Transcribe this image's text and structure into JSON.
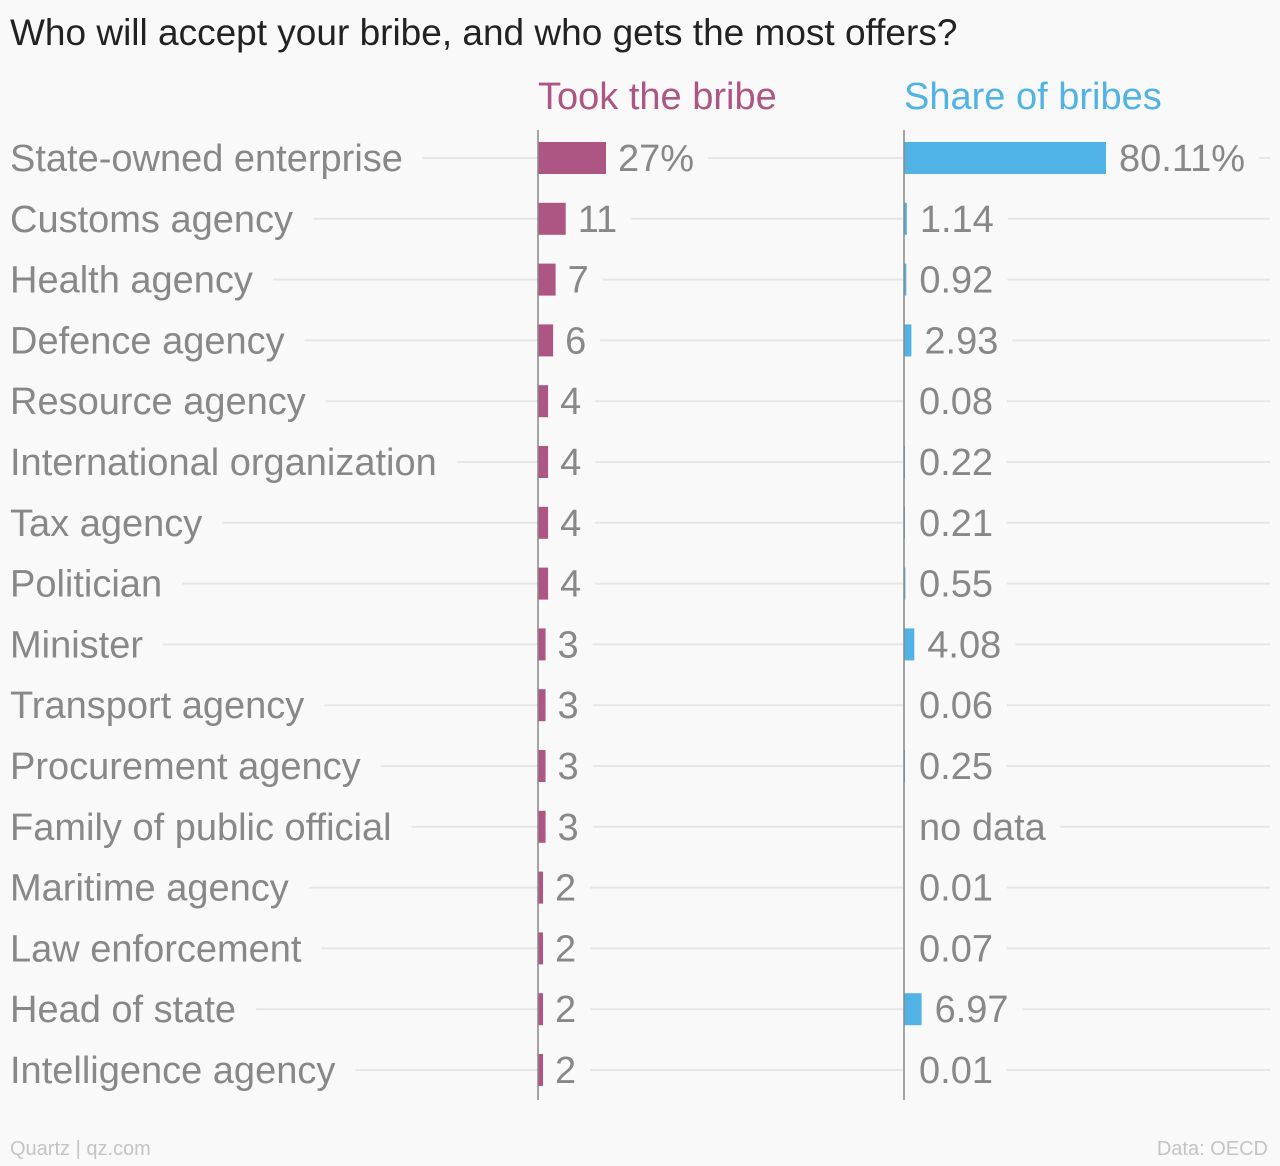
{
  "title": "Who will accept your bribe, and who gets the most offers?",
  "colors": {
    "took": "#ad5683",
    "share": "#51b2e5",
    "label": "#888888",
    "grid": "#e6e6e6",
    "axis": "#888888"
  },
  "chart_data": {
    "type": "bar",
    "categories": [
      "State-owned enterprise",
      "Customs agency",
      "Health agency",
      "Defence agency",
      "Resource agency",
      "International organization",
      "Tax agency",
      "Politician",
      "Minister",
      "Transport agency",
      "Procurement agency",
      "Family of public official",
      "Maritime agency",
      "Law enforcement",
      "Head of state",
      "Intelligence agency"
    ],
    "series": [
      {
        "name": "Took the bribe",
        "values": [
          27,
          11,
          7,
          6,
          4,
          4,
          4,
          4,
          3,
          3,
          3,
          3,
          2,
          2,
          2,
          2
        ],
        "labels": [
          "27%",
          "11",
          "7",
          "6",
          "4",
          "4",
          "4",
          "4",
          "3",
          "3",
          "3",
          "3",
          "2",
          "2",
          "2",
          "2"
        ]
      },
      {
        "name": "Share of bribes",
        "values": [
          80.11,
          1.14,
          0.92,
          2.93,
          0.08,
          0.22,
          0.21,
          0.55,
          4.08,
          0.06,
          0.25,
          null,
          0.01,
          0.07,
          6.97,
          0.01
        ],
        "labels": [
          "80.11%",
          "1.14",
          "0.92",
          "2.93",
          "0.08",
          "0.22",
          "0.21",
          "0.55",
          "4.08",
          "0.06",
          "0.25",
          "no data",
          "0.01",
          "0.07",
          "6.97",
          "0.01"
        ]
      }
    ]
  },
  "footer": {
    "source_left": "Quartz | qz.com",
    "source_right": "Data: OECD"
  }
}
